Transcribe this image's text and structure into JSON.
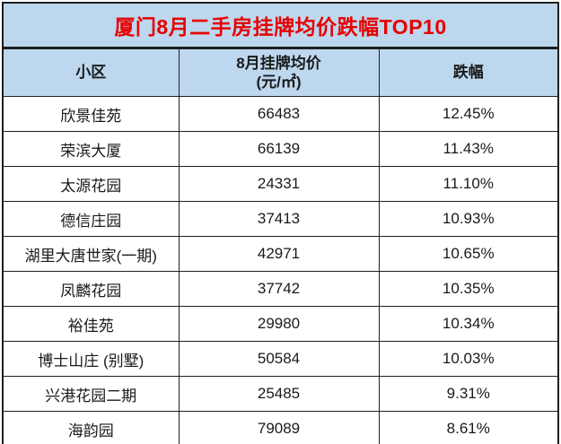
{
  "table": {
    "title": "厦门8月二手房挂牌均价跌幅TOP10",
    "title_color": "#e60000",
    "header_bg": "#bdd7ee",
    "border_color": "#1f1f1f",
    "columns": [
      "小区",
      "8月挂牌均价",
      "跌幅"
    ],
    "price_unit_line": "(元/㎡)",
    "rows": [
      {
        "name": "欣景佳苑",
        "price": "66483",
        "decline": "12.45%"
      },
      {
        "name": "荣滨大厦",
        "price": "66139",
        "decline": "11.43%"
      },
      {
        "name": "太源花园",
        "price": "24331",
        "decline": "11.10%"
      },
      {
        "name": "德信庄园",
        "price": "37413",
        "decline": "10.93%"
      },
      {
        "name": "湖里大唐世家(一期)",
        "price": "42971",
        "decline": "10.65%"
      },
      {
        "name": "凤麟花园",
        "price": "37742",
        "decline": "10.35%"
      },
      {
        "name": "裕佳苑",
        "price": "29980",
        "decline": "10.34%"
      },
      {
        "name": "博士山庄 (别墅)",
        "price": "50584",
        "decline": "10.03%"
      },
      {
        "name": "兴港花园二期",
        "price": "25485",
        "decline": "9.31%"
      },
      {
        "name": "海韵园",
        "price": "79089",
        "decline": "8.61%"
      }
    ]
  },
  "chart_data": {
    "type": "table",
    "title": "厦门8月二手房挂牌均价跌幅TOP10",
    "columns": [
      "小区",
      "8月挂牌均价(元/㎡)",
      "跌幅"
    ],
    "rows": [
      [
        "欣景佳苑",
        66483,
        "12.45%"
      ],
      [
        "荣滨大厦",
        66139,
        "11.43%"
      ],
      [
        "太源花园",
        24331,
        "11.10%"
      ],
      [
        "德信庄园",
        37413,
        "10.93%"
      ],
      [
        "湖里大唐世家(一期)",
        42971,
        "10.65%"
      ],
      [
        "凤麟花园",
        37742,
        "10.35%"
      ],
      [
        "裕佳苑",
        29980,
        "10.34%"
      ],
      [
        "博士山庄 (别墅)",
        50584,
        "10.03%"
      ],
      [
        "兴港花园二期",
        25485,
        "9.31%"
      ],
      [
        "海韵园",
        79089,
        "8.61%"
      ]
    ],
    "layout_hints": {
      "title_row_bg": "#bdd7ee",
      "title_text_color": "#e60000",
      "header_row_bg": "#bdd7ee",
      "body_bg": "#ffffff",
      "grid": "on"
    }
  }
}
